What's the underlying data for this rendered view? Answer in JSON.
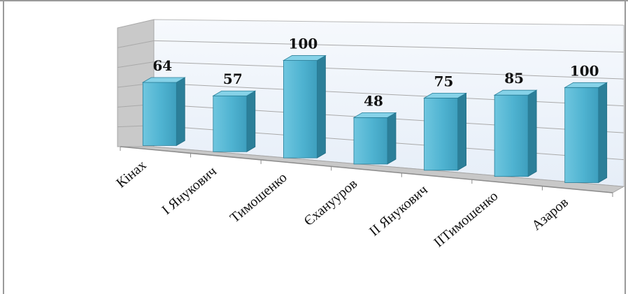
{
  "chart_data": {
    "type": "bar",
    "style": "3d-column",
    "categories": [
      "Кінах",
      "І Янукович",
      "Тимошенко",
      "Єханууров",
      "ІІ Янукович",
      "ІІТимошенко",
      "Азаров"
    ],
    "values": [
      64,
      57,
      100,
      48,
      75,
      85,
      100
    ],
    "title": "",
    "xlabel": "",
    "ylabel": "",
    "ylim": [
      0,
      120
    ],
    "grid": true,
    "legend": "none",
    "colors": {
      "bar_face": "#4fb3d1",
      "bar_side": "#2c7f99",
      "bar_top": "#86d2e8",
      "wall": "#eef4fb",
      "floor": "#c6c6c6"
    }
  }
}
